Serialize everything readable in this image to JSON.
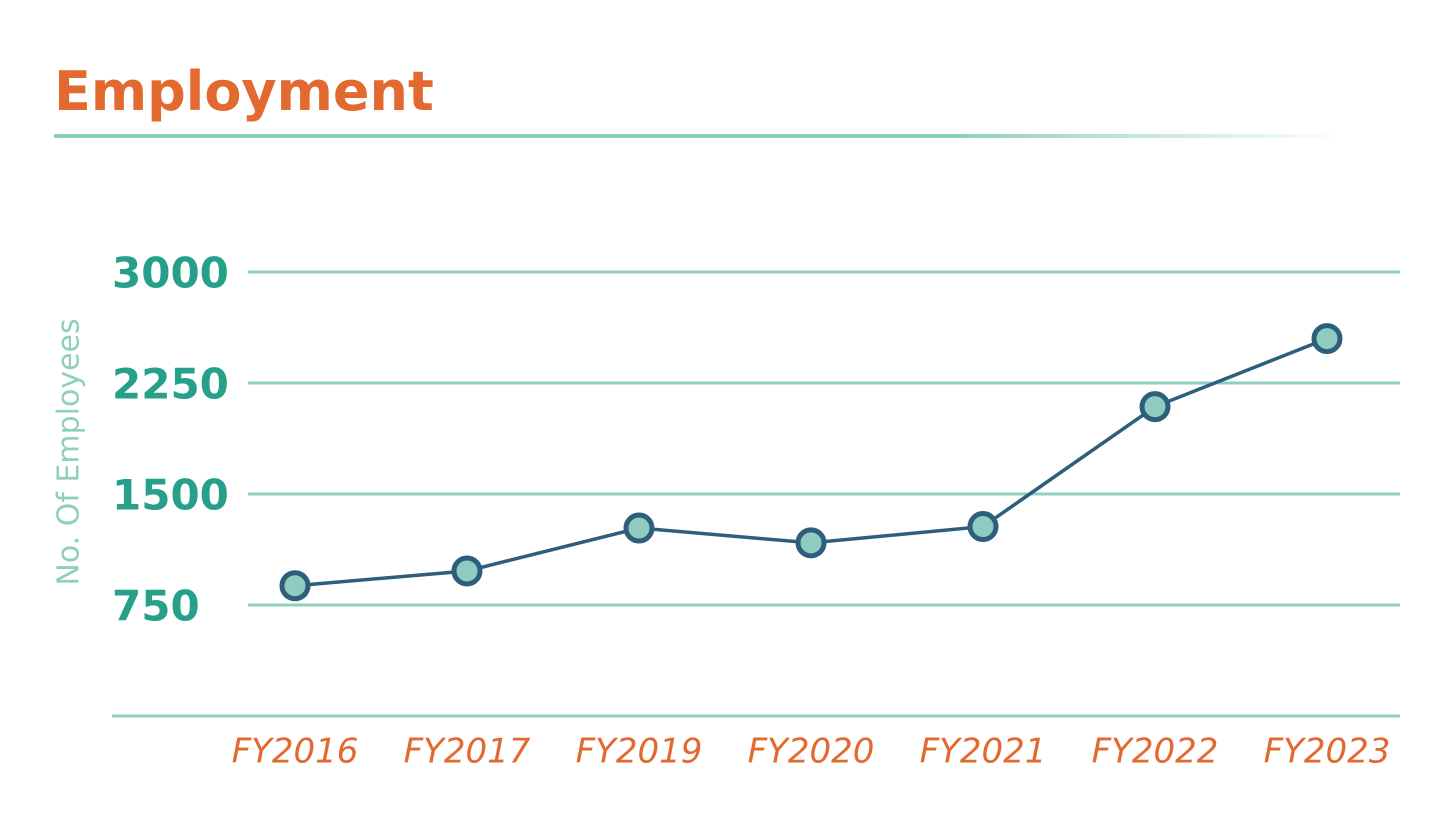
{
  "chart_data": {
    "type": "line",
    "title": "Employment",
    "y_label": "No. Of Employees",
    "categories": [
      "FY2016",
      "FY2017",
      "FY2019",
      "FY2020",
      "FY2021",
      "FY2022",
      "FY2023"
    ],
    "series": [
      {
        "name": "Employees",
        "color": "#2d5f7d",
        "marker_fill": "#8fcbbf",
        "values": [
          880,
          980,
          1270,
          1170,
          1280,
          2090,
          2550
        ]
      }
    ],
    "ylim": [
      0,
      3000
    ],
    "yticks": [
      750,
      1500,
      2250,
      3000
    ],
    "grid": true
  }
}
